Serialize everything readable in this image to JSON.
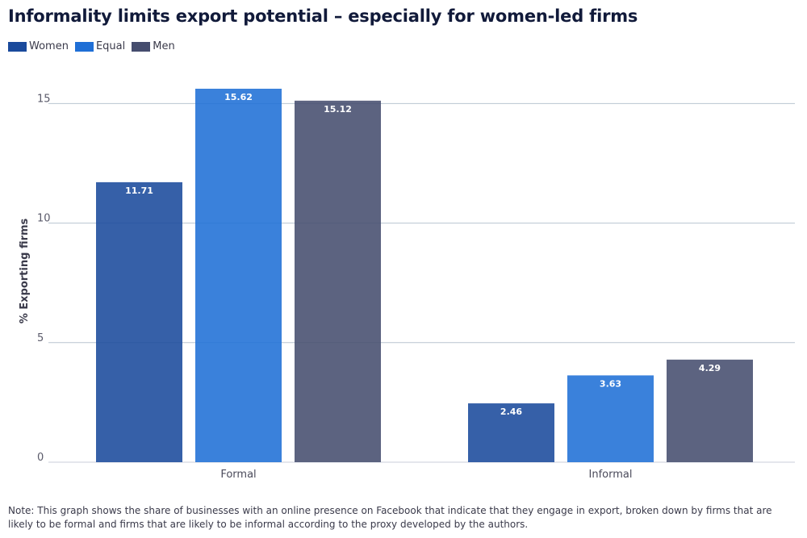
{
  "title": "Informality limits export potential – especially for women-led firms",
  "legend": [
    {
      "label": "Women",
      "color": "#1a4a9c"
    },
    {
      "label": "Equal",
      "color": "#1f6fd6"
    },
    {
      "label": "Men",
      "color": "#454d6e"
    }
  ],
  "note": "Note: This graph shows the share of businesses with an online presence on Facebook that indicate that they engage in export, broken down by firms that are likely to be formal and firms that are likely to be informal according to the proxy developed by the authors.",
  "chart_data": {
    "type": "bar",
    "title": "Informality limits export potential – especially for women-led firms",
    "xlabel": "",
    "ylabel": "% Exporting firms",
    "categories": [
      "Formal",
      "Informal"
    ],
    "series": [
      {
        "name": "Women",
        "values": [
          11.71,
          2.46
        ],
        "color": "#1a4a9c"
      },
      {
        "name": "Equal",
        "values": [
          15.62,
          3.63
        ],
        "color": "#1f6fd6"
      },
      {
        "name": "Men",
        "values": [
          15.12,
          4.29
        ],
        "color": "#454d6e"
      }
    ],
    "data_labels": [
      [
        "11.71",
        "2.46"
      ],
      [
        "15.62",
        "3.63"
      ],
      [
        "15.12",
        "4.29"
      ]
    ],
    "yticks": [
      "0",
      "5",
      "10",
      "15"
    ],
    "ylim": [
      0,
      15.62
    ],
    "grid": true,
    "legend_position": "top-left"
  }
}
